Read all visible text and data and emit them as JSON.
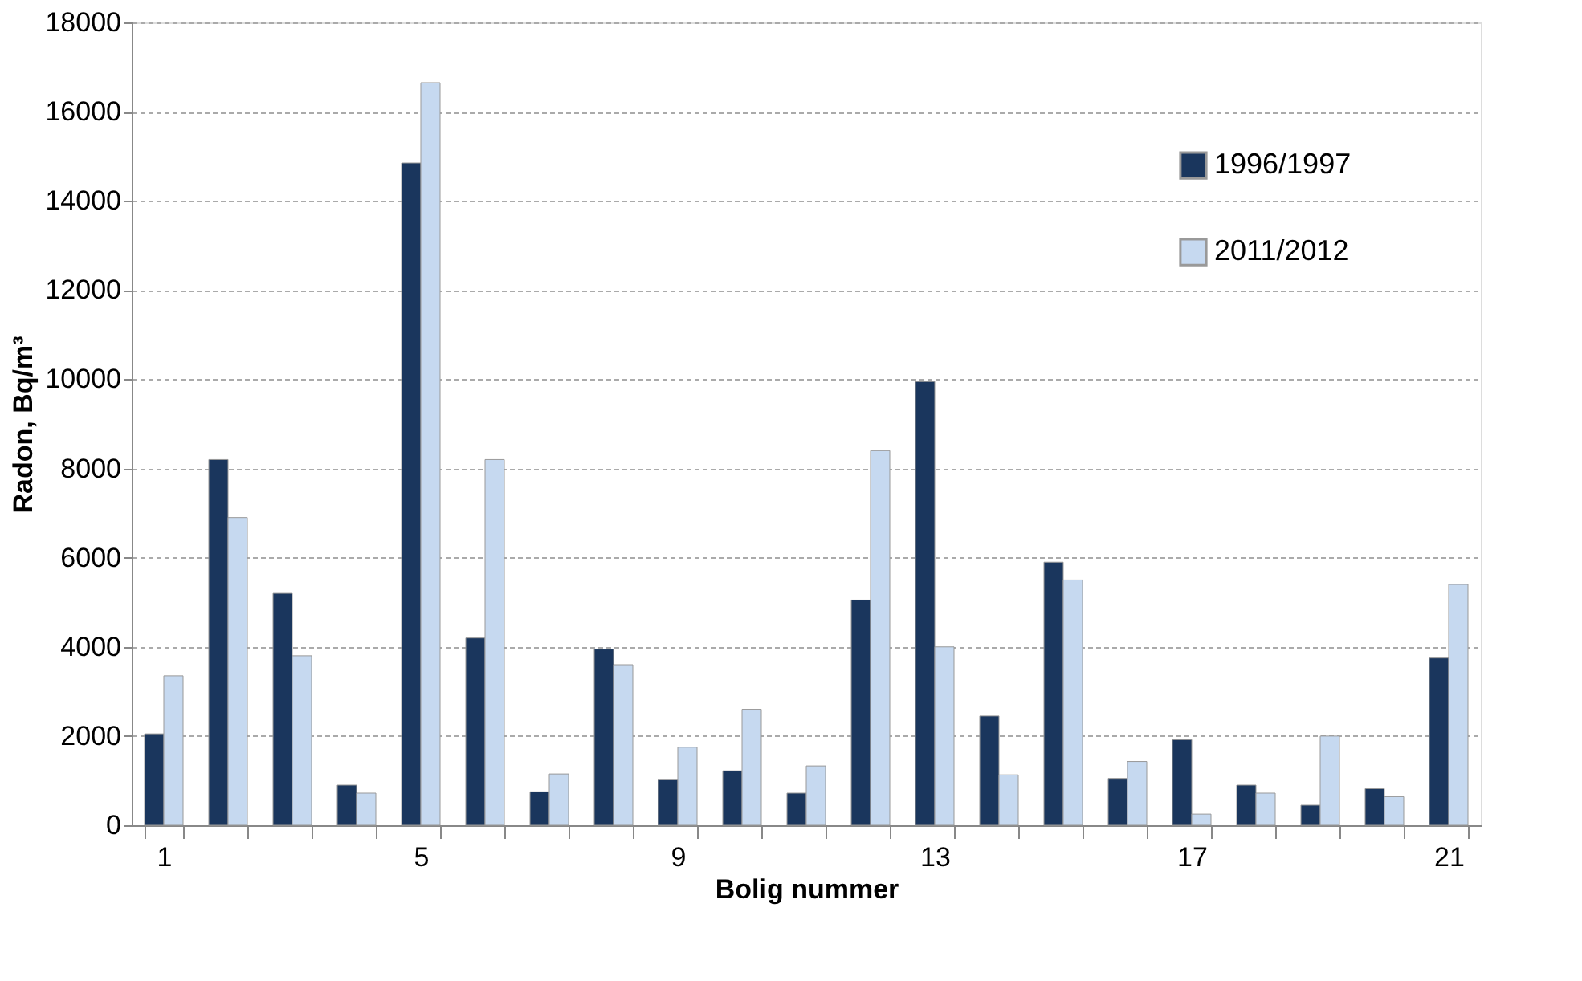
{
  "chart_data": {
    "type": "bar",
    "xlabel": "Bolig nummer",
    "ylabel": "Radon, Bq/m³",
    "categories": [
      "1",
      null,
      null,
      null,
      "5",
      null,
      null,
      null,
      "9",
      null,
      null,
      null,
      "13",
      null,
      null,
      null,
      "17",
      null,
      null,
      null,
      "21"
    ],
    "series": [
      {
        "name": "1996/1997",
        "color": "#1a365d",
        "values": [
          2050,
          8200,
          5200,
          900,
          14850,
          4200,
          750,
          3950,
          1030,
          1220,
          720,
          5050,
          9950,
          2450,
          5900,
          1050,
          1920,
          900,
          450,
          820,
          3750
        ]
      },
      {
        "name": "2011/2012",
        "color": "#c6d9f0",
        "values": [
          3350,
          6900,
          3800,
          720,
          16650,
          8200,
          1150,
          3600,
          1750,
          2600,
          1330,
          8400,
          4000,
          1130,
          5500,
          1430,
          250,
          720,
          2000,
          640,
          5400
        ]
      }
    ],
    "ylim": [
      0,
      18000
    ],
    "yticks": [
      0,
      2000,
      4000,
      6000,
      8000,
      10000,
      12000,
      14000,
      16000,
      18000
    ],
    "grid": "y",
    "legend": "top right"
  }
}
